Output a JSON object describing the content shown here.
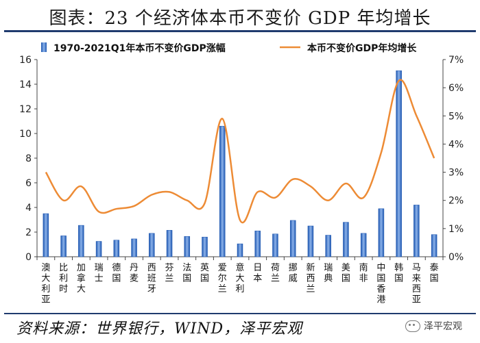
{
  "header": {
    "title": "图表：23 个经济体本币不变价 GDP 年均增长"
  },
  "footer": {
    "source": "资料来源：世界银行，WIND，泽平宏观",
    "watermark": "泽平宏观",
    "watermark_icon": "wechat-icon"
  },
  "chart_data": {
    "type": "bar+line",
    "title": "图表：23 个经济体本币不变价 GDP 年均增长",
    "categories": [
      "澳大利亚",
      "比利时",
      "加拿大",
      "瑞士",
      "德国",
      "丹麦",
      "西班牙",
      "芬兰",
      "法国",
      "英国",
      "爱尔兰",
      "意大利",
      "日本",
      "荷兰",
      "挪威",
      "新西兰",
      "瑞典",
      "美国",
      "南非",
      "中国香港",
      "韩国",
      "马来西亚",
      "泰国"
    ],
    "series": [
      {
        "name": "1970-2021Q1年本币不变价GDP涨幅",
        "type": "bar",
        "axis": "left",
        "values": [
          3.5,
          1.7,
          2.55,
          1.25,
          1.35,
          1.45,
          1.9,
          2.15,
          1.65,
          1.6,
          10.6,
          1.05,
          2.1,
          1.85,
          2.95,
          2.5,
          1.75,
          2.8,
          1.9,
          3.9,
          15.1,
          4.2,
          1.8
        ]
      },
      {
        "name": "本币不变价GDP年均增长",
        "type": "line",
        "axis": "right",
        "unit": "%",
        "values": [
          3.0,
          2.0,
          2.5,
          1.6,
          1.7,
          1.8,
          2.2,
          2.3,
          2.0,
          1.9,
          4.9,
          1.3,
          2.3,
          2.1,
          2.75,
          2.5,
          2.0,
          2.6,
          2.1,
          3.7,
          6.25,
          5.0,
          3.5
        ]
      }
    ],
    "yleft": {
      "min": 0,
      "max": 16,
      "step": 2,
      "ticks": [
        "0",
        "2",
        "4",
        "6",
        "8",
        "10",
        "12",
        "14",
        "16"
      ]
    },
    "yright": {
      "min": 0,
      "max": 7,
      "step": 1,
      "ticks": [
        "0%",
        "1%",
        "2%",
        "3%",
        "4%",
        "5%",
        "6%",
        "7%"
      ]
    },
    "legend": {
      "position": "top",
      "bar_label": "1970-2021Q1年本币不变价GDP涨幅",
      "line_label": "本币不变价GDP年均增长"
    },
    "colors": {
      "bar": "#2e6bc6",
      "bar_light": "#8db3ea",
      "line": "#ed8b35",
      "axis": "#444444"
    }
  }
}
